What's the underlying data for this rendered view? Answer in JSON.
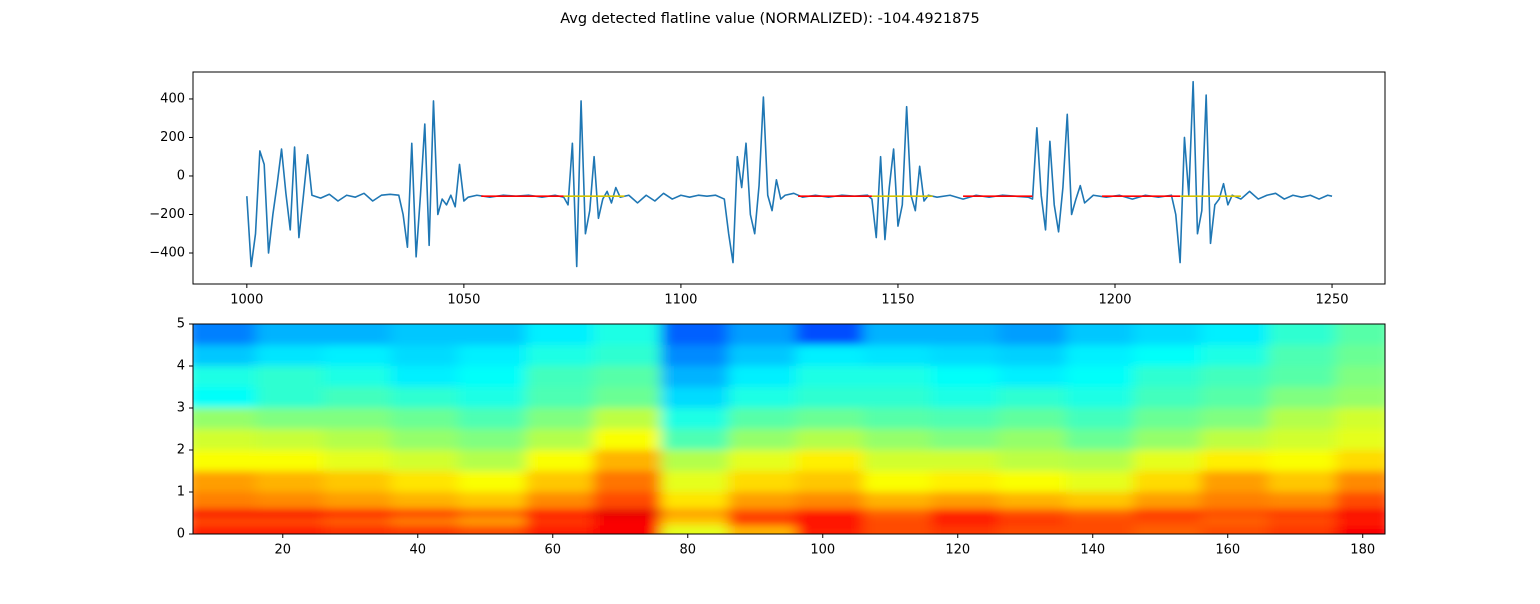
{
  "title": "Avg detected flatline value (NORMALIZED): -104.4921875",
  "chart_data": [
    {
      "type": "line",
      "xlim": [
        987.6,
        1262.2
      ],
      "ylim": [
        -561,
        540
      ],
      "xticks": [
        1000,
        1050,
        1100,
        1150,
        1200,
        1250
      ],
      "yticks": [
        {
          "value": -400,
          "label": "−400"
        },
        {
          "value": -200,
          "label": "−200"
        },
        0,
        200,
        400
      ],
      "series": [
        {
          "color": "#1f77b4",
          "x": [
            1000,
            1001,
            1002,
            1003,
            1004,
            1005,
            1006,
            1007,
            1008,
            1009,
            1010,
            1011,
            1012,
            1013,
            1014,
            1015,
            1017,
            1019,
            1021,
            1023,
            1025,
            1027,
            1029,
            1031,
            1033,
            1035,
            1036,
            1037,
            1038,
            1039,
            1040,
            1041,
            1042,
            1043,
            1044,
            1045,
            1046,
            1047,
            1048,
            1049,
            1050,
            1051,
            1053,
            1056,
            1059,
            1062,
            1065,
            1068,
            1071,
            1073,
            1074,
            1075,
            1076,
            1077,
            1078,
            1079,
            1080,
            1081,
            1082,
            1083,
            1084,
            1085,
            1086,
            1088,
            1090,
            1092,
            1094,
            1096,
            1098,
            1100,
            1102,
            1104,
            1106,
            1108,
            1110,
            1111,
            1112,
            1113,
            1114,
            1115,
            1116,
            1117,
            1118,
            1119,
            1120,
            1121,
            1122,
            1123,
            1124,
            1126,
            1128,
            1131,
            1134,
            1137,
            1140,
            1143,
            1144,
            1145,
            1146,
            1147,
            1148,
            1149,
            1150,
            1151,
            1152,
            1153,
            1154,
            1155,
            1156,
            1157,
            1159,
            1162,
            1165,
            1168,
            1171,
            1174,
            1177,
            1180,
            1181,
            1182,
            1183,
            1184,
            1185,
            1186,
            1187,
            1188,
            1189,
            1190,
            1191,
            1192,
            1193,
            1195,
            1198,
            1201,
            1204,
            1207,
            1210,
            1213,
            1214,
            1215,
            1216,
            1217,
            1218,
            1219,
            1220,
            1221,
            1222,
            1223,
            1224,
            1225,
            1226,
            1227,
            1229,
            1231,
            1233,
            1235,
            1237,
            1239,
            1241,
            1243,
            1245,
            1247,
            1249,
            1250
          ],
          "values": [
            -105,
            -470,
            -300,
            130,
            60,
            -400,
            -200,
            -40,
            140,
            -90,
            -280,
            150,
            -320,
            -110,
            110,
            -100,
            -115,
            -95,
            -130,
            -100,
            -110,
            -90,
            -130,
            -100,
            -95,
            -100,
            -200,
            -370,
            170,
            -420,
            -100,
            270,
            -360,
            390,
            -200,
            -120,
            -150,
            -100,
            -160,
            60,
            -130,
            -110,
            -100,
            -110,
            -100,
            -105,
            -100,
            -110,
            -100,
            -110,
            -150,
            170,
            -470,
            390,
            -300,
            -180,
            100,
            -220,
            -120,
            -80,
            -140,
            -60,
            -110,
            -100,
            -140,
            -100,
            -130,
            -90,
            -120,
            -100,
            -110,
            -100,
            -105,
            -100,
            -120,
            -300,
            -450,
            100,
            -60,
            170,
            -200,
            -300,
            -50,
            410,
            -100,
            -180,
            -20,
            -120,
            -100,
            -90,
            -110,
            -100,
            -110,
            -100,
            -105,
            -100,
            -120,
            -320,
            100,
            -330,
            -60,
            140,
            -260,
            -150,
            360,
            -100,
            -180,
            50,
            -130,
            -100,
            -110,
            -100,
            -120,
            -100,
            -110,
            -100,
            -105,
            -110,
            -120,
            250,
            -100,
            -280,
            180,
            -150,
            -290,
            -60,
            320,
            -200,
            -120,
            -50,
            -140,
            -100,
            -110,
            -100,
            -120,
            -100,
            -110,
            -100,
            -200,
            -450,
            200,
            -100,
            490,
            -300,
            -180,
            420,
            -350,
            -150,
            -120,
            -40,
            -150,
            -100,
            -120,
            -80,
            -120,
            -100,
            -90,
            -120,
            -100,
            -110,
            -100,
            -120,
            -100,
            -105
          ]
        },
        {
          "color": "#ff0000",
          "x": [
            1054,
            1073,
            1074,
            1127,
            1144,
            1145,
            1165,
            1181,
            1182,
            1197,
            1215
          ],
          "values": [
            -105,
            -105,
            null,
            -105,
            -105,
            null,
            -105,
            -105,
            null,
            -105,
            -105
          ]
        },
        {
          "color": "#d4c200",
          "x": [
            1073,
            1087,
            1088,
            1144,
            1158,
            1159,
            1215,
            1229
          ],
          "values": [
            -105,
            -105,
            null,
            -105,
            -105,
            null,
            -105,
            -105
          ]
        }
      ]
    },
    {
      "type": "heatmap",
      "colormap": "jet",
      "zlim": [
        0,
        1
      ],
      "xlim": [
        6.7,
        183.3
      ],
      "ylim": [
        0,
        5
      ],
      "xticks": [
        20,
        40,
        60,
        80,
        100,
        120,
        140,
        160,
        180
      ],
      "yticks": [
        0,
        1,
        2,
        3,
        4,
        5
      ],
      "x_edges": [
        6.7,
        16,
        26,
        36,
        46,
        56,
        66,
        76,
        86,
        96,
        106,
        116,
        126,
        136,
        146,
        156,
        166,
        176,
        183.3
      ],
      "y_edges": [
        0,
        0.2,
        0.4,
        0.6,
        1,
        1.5,
        2,
        2.5,
        3,
        3.5,
        4,
        4.5,
        5
      ],
      "z": [
        [
          0.85,
          0.85,
          0.83,
          0.82,
          0.8,
          0.85,
          0.88,
          0.6,
          0.7,
          0.85,
          0.8,
          0.82,
          0.8,
          0.8,
          0.78,
          0.8,
          0.82,
          0.88
        ],
        [
          0.8,
          0.8,
          0.78,
          0.75,
          0.72,
          0.82,
          0.88,
          0.68,
          0.82,
          0.86,
          0.8,
          0.85,
          0.82,
          0.8,
          0.8,
          0.78,
          0.8,
          0.85
        ],
        [
          0.88,
          0.88,
          0.85,
          0.82,
          0.78,
          0.85,
          0.9,
          0.72,
          0.8,
          0.85,
          0.78,
          0.84,
          0.8,
          0.78,
          0.82,
          0.8,
          0.82,
          0.88
        ],
        [
          0.75,
          0.74,
          0.72,
          0.7,
          0.68,
          0.74,
          0.8,
          0.65,
          0.72,
          0.74,
          0.7,
          0.72,
          0.7,
          0.68,
          0.72,
          0.75,
          0.74,
          0.8
        ],
        [
          0.72,
          0.7,
          0.68,
          0.65,
          0.62,
          0.68,
          0.76,
          0.6,
          0.66,
          0.68,
          0.62,
          0.64,
          0.62,
          0.6,
          0.66,
          0.72,
          0.68,
          0.74
        ],
        [
          0.62,
          0.62,
          0.6,
          0.58,
          0.55,
          0.62,
          0.7,
          0.55,
          0.6,
          0.64,
          0.58,
          0.58,
          0.56,
          0.55,
          0.6,
          0.64,
          0.62,
          0.66
        ],
        [
          0.58,
          0.57,
          0.55,
          0.52,
          0.5,
          0.55,
          0.62,
          0.45,
          0.52,
          0.55,
          0.52,
          0.5,
          0.52,
          0.48,
          0.52,
          0.56,
          0.58,
          0.6
        ],
        [
          0.52,
          0.5,
          0.5,
          0.48,
          0.45,
          0.5,
          0.56,
          0.4,
          0.46,
          0.48,
          0.46,
          0.45,
          0.47,
          0.44,
          0.48,
          0.5,
          0.55,
          0.58
        ],
        [
          0.38,
          0.42,
          0.44,
          0.42,
          0.4,
          0.45,
          0.48,
          0.34,
          0.4,
          0.42,
          0.42,
          0.4,
          0.42,
          0.4,
          0.44,
          0.46,
          0.5,
          0.52
        ],
        [
          0.4,
          0.42,
          0.4,
          0.36,
          0.38,
          0.44,
          0.46,
          0.3,
          0.36,
          0.4,
          0.4,
          0.38,
          0.36,
          0.38,
          0.42,
          0.44,
          0.46,
          0.5
        ],
        [
          0.32,
          0.35,
          0.36,
          0.34,
          0.36,
          0.4,
          0.42,
          0.26,
          0.32,
          0.36,
          0.35,
          0.34,
          0.33,
          0.36,
          0.38,
          0.4,
          0.45,
          0.48
        ],
        [
          0.25,
          0.3,
          0.3,
          0.32,
          0.32,
          0.36,
          0.4,
          0.22,
          0.28,
          0.2,
          0.3,
          0.3,
          0.28,
          0.32,
          0.34,
          0.36,
          0.42,
          0.46
        ]
      ]
    }
  ]
}
